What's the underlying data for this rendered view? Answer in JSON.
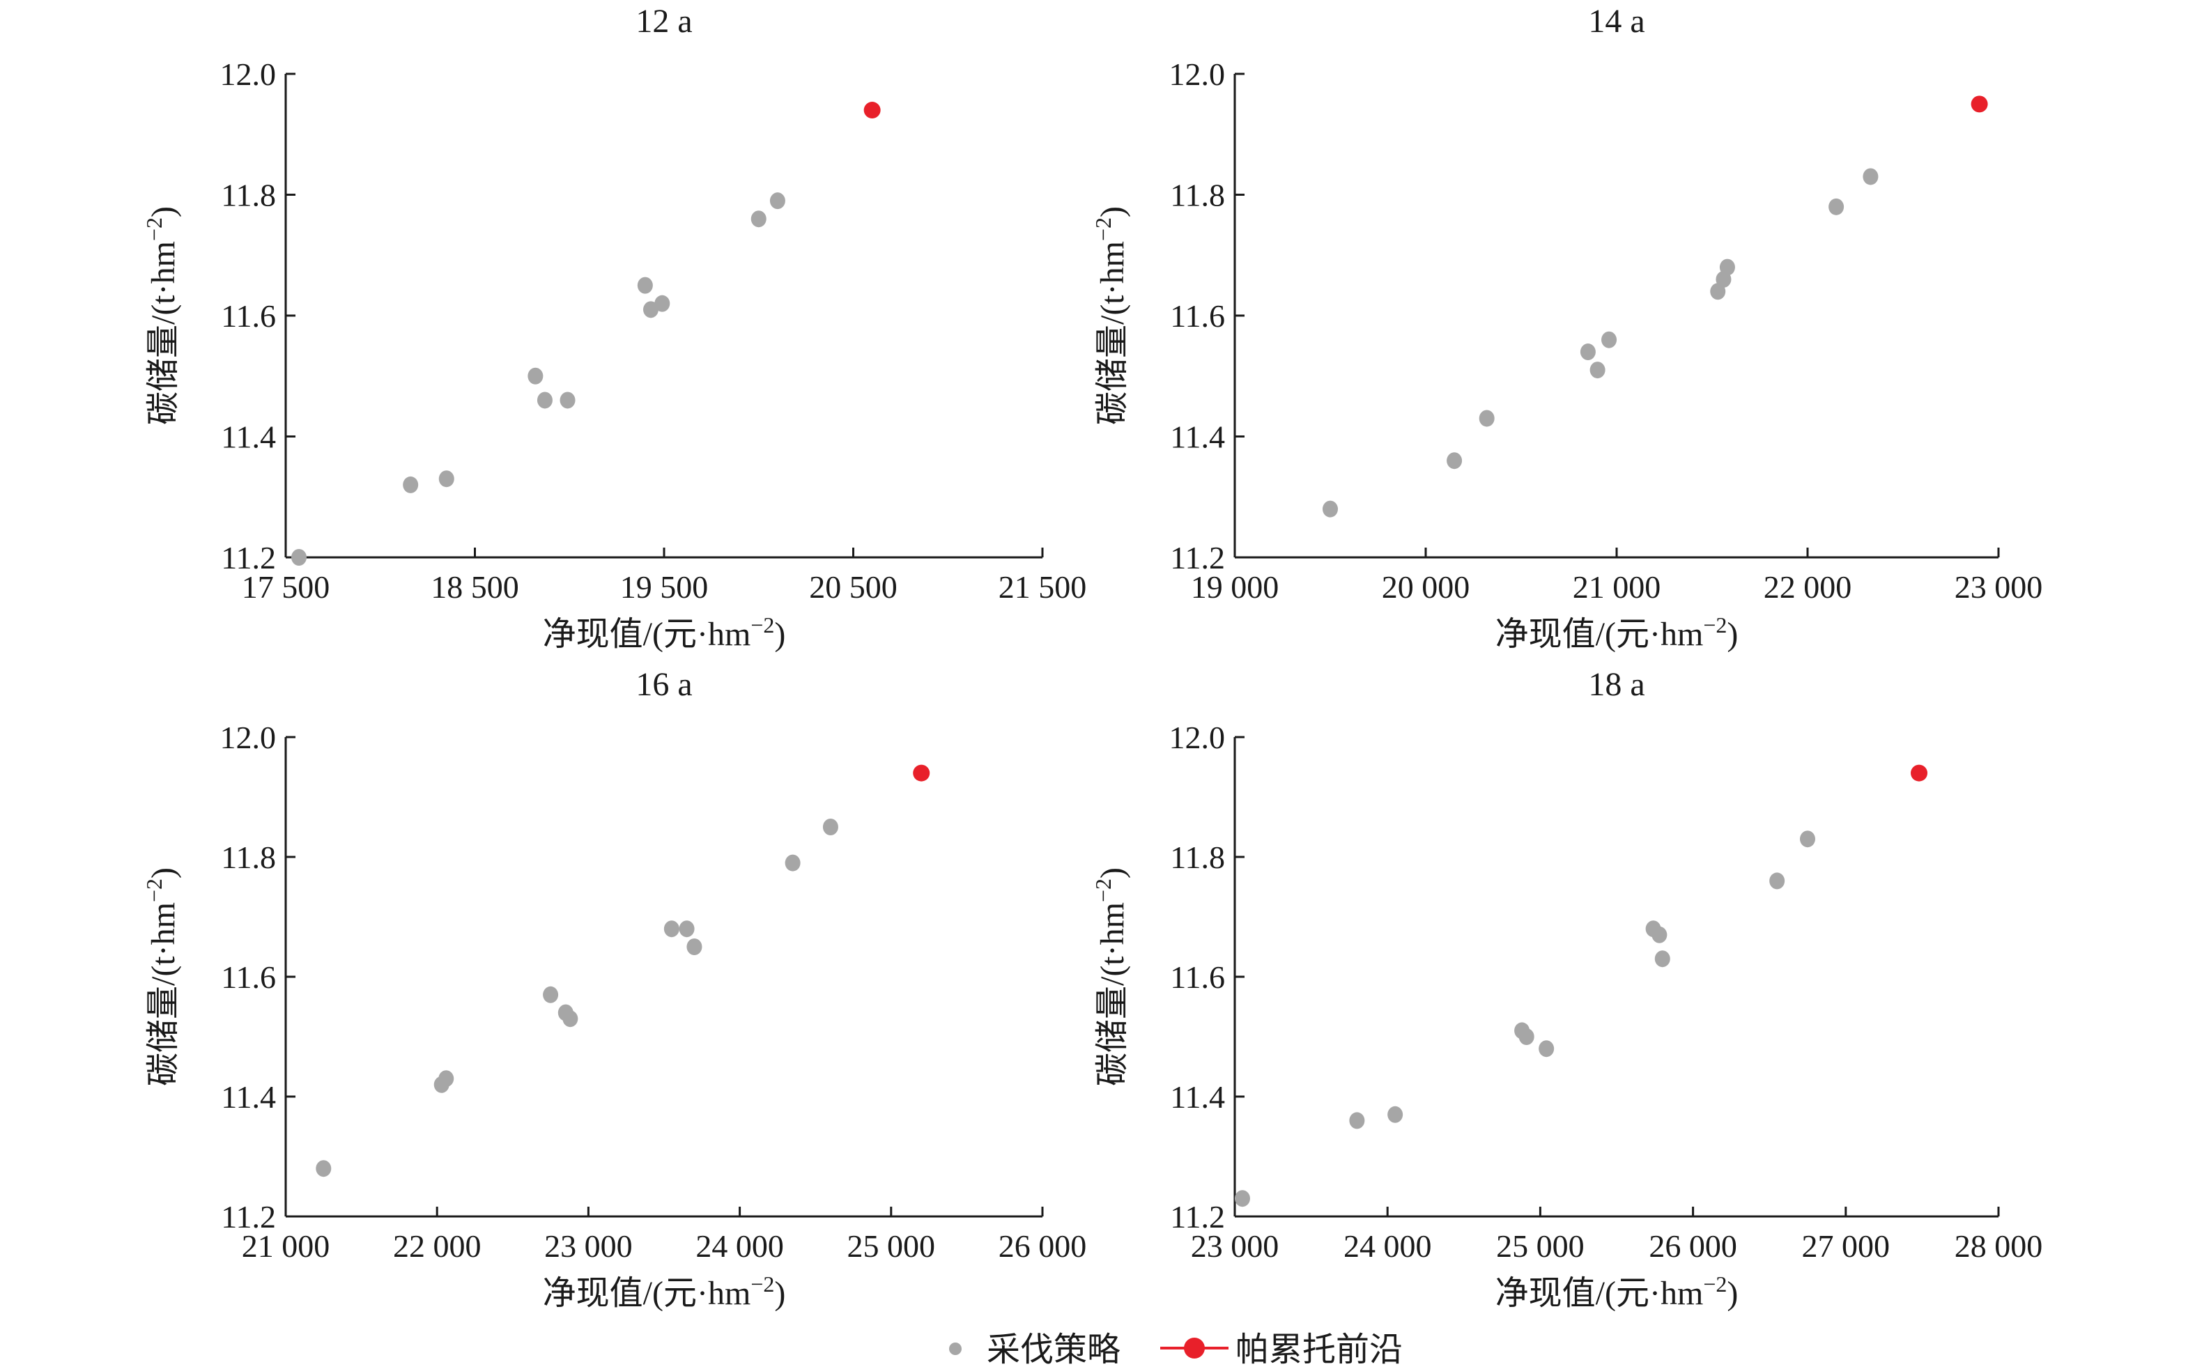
{
  "colors": {
    "strategy": "#a6a6a6",
    "pareto": "#e8202a",
    "axis": "#1a1a1a"
  },
  "legend": {
    "strategy_label": "采伐策略",
    "pareto_label": "帕累托前沿",
    "placement": "bottom-center"
  },
  "chart_data": [
    {
      "type": "scatter",
      "title": "12 a",
      "xlabel": "净现值/(元·hm⁻²)",
      "ylabel": "碳储量/(t·hm⁻²)",
      "xlim": [
        17500,
        21500
      ],
      "ylim": [
        11.2,
        12.0
      ],
      "xticks": [
        17500,
        18500,
        19500,
        20500,
        21500
      ],
      "xtick_labels": [
        "17 500",
        "18 500",
        "19 500",
        "20 500",
        "21 500"
      ],
      "yticks": [
        11.2,
        11.4,
        11.6,
        11.8,
        12.0
      ],
      "ytick_labels": [
        "11.2",
        "11.4",
        "11.6",
        "11.8",
        "12.0"
      ],
      "grid": false,
      "series": [
        {
          "name": "采伐策略",
          "points": [
            [
              17570,
              11.2
            ],
            [
              18160,
              11.32
            ],
            [
              18350,
              11.33
            ],
            [
              18820,
              11.5
            ],
            [
              18870,
              11.46
            ],
            [
              18990,
              11.46
            ],
            [
              19400,
              11.65
            ],
            [
              19430,
              11.61
            ],
            [
              19490,
              11.62
            ],
            [
              20000,
              11.76
            ],
            [
              20100,
              11.79
            ]
          ]
        },
        {
          "name": "帕累托前沿",
          "points": [
            [
              20600,
              11.94
            ]
          ]
        }
      ]
    },
    {
      "type": "scatter",
      "title": "14 a",
      "xlabel": "净现值/(元·hm⁻²)",
      "ylabel": "碳储量/(t·hm⁻²)",
      "xlim": [
        19000,
        23000
      ],
      "ylim": [
        11.2,
        12.0
      ],
      "xticks": [
        19000,
        20000,
        21000,
        22000,
        23000
      ],
      "xtick_labels": [
        "19 000",
        "20 000",
        "21 000",
        "22 000",
        "23 000"
      ],
      "yticks": [
        11.2,
        11.4,
        11.6,
        11.8,
        12.0
      ],
      "ytick_labels": [
        "11.2",
        "11.4",
        "11.6",
        "11.8",
        "12.0"
      ],
      "grid": false,
      "series": [
        {
          "name": "采伐策略",
          "points": [
            [
              19500,
              11.28
            ],
            [
              20150,
              11.36
            ],
            [
              20320,
              11.43
            ],
            [
              20850,
              11.54
            ],
            [
              20900,
              11.51
            ],
            [
              20960,
              11.56
            ],
            [
              21530,
              11.64
            ],
            [
              21560,
              11.66
            ],
            [
              21580,
              11.68
            ],
            [
              22150,
              11.78
            ],
            [
              22330,
              11.83
            ]
          ]
        },
        {
          "name": "帕累托前沿",
          "points": [
            [
              22900,
              11.95
            ]
          ]
        }
      ]
    },
    {
      "type": "scatter",
      "title": "16 a",
      "xlabel": "净现值/(元·hm⁻²)",
      "ylabel": "碳储量/(t·hm⁻²)",
      "xlim": [
        21000,
        26000
      ],
      "ylim": [
        11.2,
        12.0
      ],
      "xticks": [
        21000,
        22000,
        23000,
        24000,
        25000,
        26000
      ],
      "xtick_labels": [
        "21 000",
        "22 000",
        "23 000",
        "24 000",
        "25 000",
        "26 000"
      ],
      "yticks": [
        11.2,
        11.4,
        11.6,
        11.8,
        12.0
      ],
      "ytick_labels": [
        "11.2",
        "11.4",
        "11.6",
        "11.8",
        "12.0"
      ],
      "grid": false,
      "series": [
        {
          "name": "采伐策略",
          "points": [
            [
              21250,
              11.28
            ],
            [
              22030,
              11.42
            ],
            [
              22060,
              11.43
            ],
            [
              22750,
              11.57
            ],
            [
              22850,
              11.54
            ],
            [
              22880,
              11.53
            ],
            [
              23550,
              11.68
            ],
            [
              23650,
              11.68
            ],
            [
              23700,
              11.65
            ],
            [
              24350,
              11.79
            ],
            [
              24600,
              11.85
            ]
          ]
        },
        {
          "name": "帕累托前沿",
          "points": [
            [
              25200,
              11.94
            ]
          ]
        }
      ]
    },
    {
      "type": "scatter",
      "title": "18 a",
      "xlabel": "净现值/(元·hm⁻²)",
      "ylabel": "碳储量/(t·hm⁻²)",
      "xlim": [
        23000,
        28000
      ],
      "ylim": [
        11.2,
        12.0
      ],
      "xticks": [
        23000,
        24000,
        25000,
        26000,
        27000,
        28000
      ],
      "xtick_labels": [
        "23 000",
        "24 000",
        "25 000",
        "26 000",
        "27 000",
        "28 000"
      ],
      "yticks": [
        11.2,
        11.4,
        11.6,
        11.8,
        12.0
      ],
      "ytick_labels": [
        "11.2",
        "11.4",
        "11.6",
        "11.8",
        "12.0"
      ],
      "grid": false,
      "series": [
        {
          "name": "采伐策略",
          "points": [
            [
              23050,
              11.23
            ],
            [
              23800,
              11.36
            ],
            [
              24050,
              11.37
            ],
            [
              24880,
              11.51
            ],
            [
              24910,
              11.5
            ],
            [
              25040,
              11.48
            ],
            [
              25740,
              11.68
            ],
            [
              25780,
              11.67
            ],
            [
              25800,
              11.63
            ],
            [
              26550,
              11.76
            ],
            [
              26750,
              11.83
            ]
          ]
        },
        {
          "name": "帕累托前沿",
          "points": [
            [
              27480,
              11.94
            ]
          ]
        }
      ]
    }
  ]
}
